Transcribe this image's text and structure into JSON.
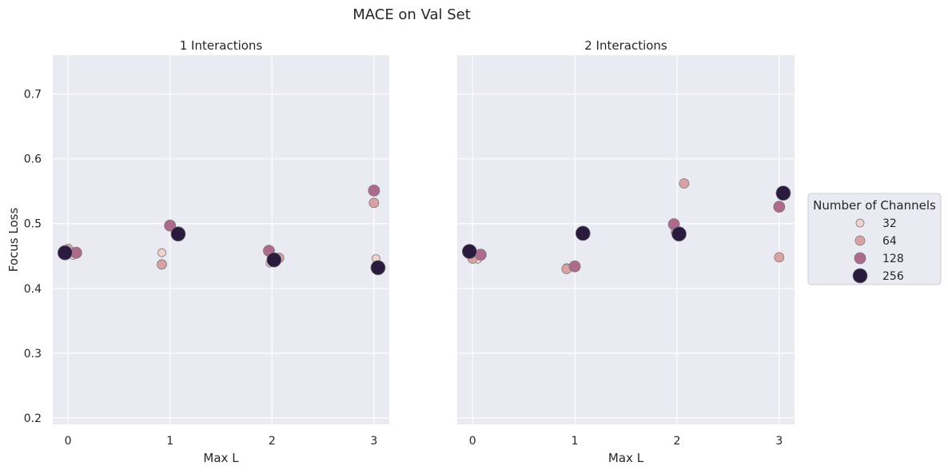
{
  "figure": {
    "title": "MACE on Val Set"
  },
  "colors": {
    "c32": "#eed3cf",
    "c64": "#d8a1a4",
    "c128": "#ad6a8d",
    "c256": "#2a1a3d",
    "panel_bg": "#eaeaf2",
    "grid": "#ffffff",
    "edge": "#7a7a7a"
  },
  "chart_data": [
    {
      "type": "scatter",
      "title": "1 Interactions",
      "xlabel": "Max L",
      "ylabel": "Focus Loss",
      "xticks": [
        "0",
        "1",
        "2",
        "3"
      ],
      "yticks": [
        "0.2",
        "0.3",
        "0.4",
        "0.5",
        "0.6",
        "0.7"
      ],
      "xlim": [
        -0.15,
        3.15
      ],
      "ylim": [
        0.19,
        0.76
      ],
      "grid": true,
      "series": [
        {
          "name": "32",
          "points": [
            [
              0.05,
              0.451
            ],
            [
              0.92,
              0.455
            ],
            [
              1.98,
              0.439
            ],
            [
              3.02,
              0.446
            ]
          ]
        },
        {
          "name": "64",
          "points": [
            [
              0.0,
              0.461
            ],
            [
              0.92,
              0.437
            ],
            [
              2.07,
              0.447
            ],
            [
              3.0,
              0.532
            ]
          ]
        },
        {
          "name": "128",
          "points": [
            [
              0.08,
              0.455
            ],
            [
              1.0,
              0.497
            ],
            [
              1.97,
              0.458
            ],
            [
              3.0,
              0.551
            ]
          ]
        },
        {
          "name": "256",
          "points": [
            [
              -0.03,
              0.455
            ],
            [
              1.08,
              0.484
            ],
            [
              2.02,
              0.444
            ],
            [
              3.04,
              0.432
            ]
          ]
        }
      ]
    },
    {
      "type": "scatter",
      "title": "2 Interactions",
      "xlabel": "Max L",
      "ylabel": "",
      "xticks": [
        "0",
        "1",
        "2",
        "3"
      ],
      "yticks": [],
      "xlim": [
        -0.15,
        3.15
      ],
      "ylim": [
        0.19,
        0.76
      ],
      "grid": true,
      "series": [
        {
          "name": "32",
          "points": [
            [
              0.05,
              0.445
            ],
            [
              0.92,
              0.432
            ],
            [
              1.98,
              0.487
            ],
            [
              3.02,
              0.543
            ]
          ]
        },
        {
          "name": "64",
          "points": [
            [
              0.0,
              0.446
            ],
            [
              0.92,
              0.43
            ],
            [
              2.07,
              0.562
            ],
            [
              3.0,
              0.448
            ]
          ]
        },
        {
          "name": "128",
          "points": [
            [
              0.08,
              0.452
            ],
            [
              1.0,
              0.434
            ],
            [
              1.97,
              0.499
            ],
            [
              3.0,
              0.526
            ]
          ]
        },
        {
          "name": "256",
          "points": [
            [
              -0.03,
              0.457
            ],
            [
              1.08,
              0.485
            ],
            [
              2.02,
              0.484
            ],
            [
              3.04,
              0.547
            ]
          ]
        }
      ]
    }
  ],
  "legend": {
    "title": "Number of Channels",
    "placement": "right",
    "entries": [
      "32",
      "64",
      "128",
      "256"
    ]
  }
}
